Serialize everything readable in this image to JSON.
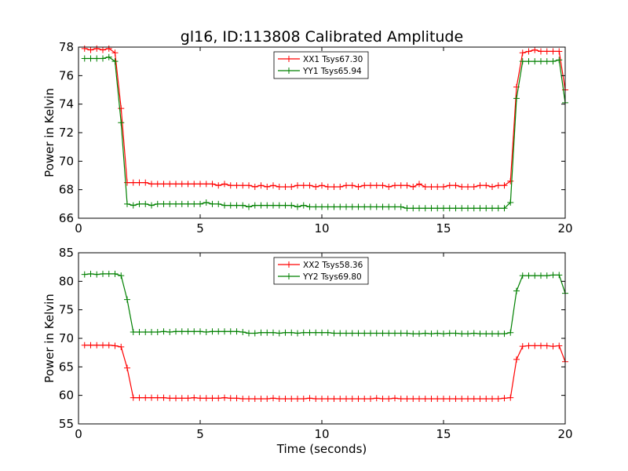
{
  "chart_data": [
    {
      "type": "line",
      "title": "gl16, ID:113808 Calibrated Amplitude",
      "xlabel": "",
      "ylabel": "Power in Kelvin",
      "xlim": [
        0,
        20
      ],
      "ylim": [
        66,
        78
      ],
      "xticks": [
        "0",
        "5",
        "10",
        "15",
        "20"
      ],
      "yticks": [
        "66",
        "68",
        "70",
        "72",
        "74",
        "76",
        "78"
      ],
      "grid": false,
      "legend_position": "top-center",
      "x": [
        0.25,
        0.5,
        0.75,
        1.0,
        1.25,
        1.5,
        1.75,
        2.0,
        2.25,
        2.5,
        2.75,
        3.0,
        3.25,
        3.5,
        3.75,
        4.0,
        4.25,
        4.5,
        4.75,
        5.0,
        5.25,
        5.5,
        5.75,
        6.0,
        6.25,
        6.5,
        6.75,
        7.0,
        7.25,
        7.5,
        7.75,
        8.0,
        8.25,
        8.5,
        8.75,
        9.0,
        9.25,
        9.5,
        9.75,
        10.0,
        10.25,
        10.5,
        10.75,
        11.0,
        11.25,
        11.5,
        11.75,
        12.0,
        12.25,
        12.5,
        12.75,
        13.0,
        13.25,
        13.5,
        13.75,
        14.0,
        14.25,
        14.5,
        14.75,
        15.0,
        15.25,
        15.5,
        15.75,
        16.0,
        16.25,
        16.5,
        16.75,
        17.0,
        17.25,
        17.5,
        17.75,
        18.0,
        18.25,
        18.5,
        18.75,
        19.0,
        19.25,
        19.5,
        19.75,
        20.0
      ],
      "series": [
        {
          "name": "XX1 Tsys67.30",
          "color": "#ff0000",
          "values": [
            77.9,
            77.8,
            77.9,
            77.8,
            77.9,
            77.6,
            73.7,
            68.5,
            68.5,
            68.5,
            68.5,
            68.4,
            68.4,
            68.4,
            68.4,
            68.4,
            68.4,
            68.4,
            68.4,
            68.4,
            68.4,
            68.4,
            68.3,
            68.4,
            68.3,
            68.3,
            68.3,
            68.3,
            68.2,
            68.3,
            68.2,
            68.3,
            68.2,
            68.2,
            68.2,
            68.3,
            68.3,
            68.3,
            68.2,
            68.3,
            68.2,
            68.2,
            68.2,
            68.3,
            68.3,
            68.2,
            68.3,
            68.3,
            68.3,
            68.3,
            68.2,
            68.3,
            68.3,
            68.3,
            68.2,
            68.4,
            68.2,
            68.2,
            68.2,
            68.2,
            68.3,
            68.3,
            68.2,
            68.2,
            68.2,
            68.3,
            68.3,
            68.2,
            68.3,
            68.3,
            68.6,
            75.2,
            77.6,
            77.7,
            77.8,
            77.7,
            77.7,
            77.7,
            77.7,
            75.0
          ]
        },
        {
          "name": "YY1 Tsys65.94",
          "color": "#008000",
          "values": [
            77.2,
            77.2,
            77.2,
            77.2,
            77.3,
            77.0,
            72.7,
            67.0,
            66.9,
            67.0,
            67.0,
            66.9,
            67.0,
            67.0,
            67.0,
            67.0,
            67.0,
            67.0,
            67.0,
            67.0,
            67.1,
            67.0,
            67.0,
            66.9,
            66.9,
            66.9,
            66.9,
            66.8,
            66.9,
            66.9,
            66.9,
            66.9,
            66.9,
            66.9,
            66.9,
            66.8,
            66.9,
            66.8,
            66.8,
            66.8,
            66.8,
            66.8,
            66.8,
            66.8,
            66.8,
            66.8,
            66.8,
            66.8,
            66.8,
            66.8,
            66.8,
            66.8,
            66.8,
            66.7,
            66.7,
            66.7,
            66.7,
            66.7,
            66.7,
            66.7,
            66.7,
            66.7,
            66.7,
            66.7,
            66.7,
            66.7,
            66.7,
            66.7,
            66.7,
            66.7,
            67.1,
            74.4,
            77.0,
            77.0,
            77.0,
            77.0,
            77.0,
            77.0,
            77.1,
            74.1
          ]
        }
      ]
    },
    {
      "type": "line",
      "title": "",
      "xlabel": "Time (seconds)",
      "ylabel": "Power in Kelvin",
      "xlim": [
        0,
        20
      ],
      "ylim": [
        55,
        85
      ],
      "xticks": [
        "0",
        "5",
        "10",
        "15",
        "20"
      ],
      "yticks": [
        "55",
        "60",
        "65",
        "70",
        "75",
        "80",
        "85"
      ],
      "grid": false,
      "legend_position": "top-center",
      "x": [
        0.25,
        0.5,
        0.75,
        1.0,
        1.25,
        1.5,
        1.75,
        2.0,
        2.25,
        2.5,
        2.75,
        3.0,
        3.25,
        3.5,
        3.75,
        4.0,
        4.25,
        4.5,
        4.75,
        5.0,
        5.25,
        5.5,
        5.75,
        6.0,
        6.25,
        6.5,
        6.75,
        7.0,
        7.25,
        7.5,
        7.75,
        8.0,
        8.25,
        8.5,
        8.75,
        9.0,
        9.25,
        9.5,
        9.75,
        10.0,
        10.25,
        10.5,
        10.75,
        11.0,
        11.25,
        11.5,
        11.75,
        12.0,
        12.25,
        12.5,
        12.75,
        13.0,
        13.25,
        13.5,
        13.75,
        14.0,
        14.25,
        14.5,
        14.75,
        15.0,
        15.25,
        15.5,
        15.75,
        16.0,
        16.25,
        16.5,
        16.75,
        17.0,
        17.25,
        17.5,
        17.75,
        18.0,
        18.25,
        18.5,
        18.75,
        19.0,
        19.25,
        19.5,
        19.75,
        20.0
      ],
      "series": [
        {
          "name": "XX2 Tsys58.36",
          "color": "#ff0000",
          "values": [
            68.8,
            68.8,
            68.8,
            68.8,
            68.8,
            68.7,
            68.5,
            64.8,
            59.6,
            59.6,
            59.6,
            59.6,
            59.6,
            59.6,
            59.5,
            59.5,
            59.5,
            59.5,
            59.6,
            59.5,
            59.5,
            59.5,
            59.5,
            59.6,
            59.5,
            59.5,
            59.4,
            59.4,
            59.4,
            59.4,
            59.4,
            59.5,
            59.4,
            59.4,
            59.4,
            59.4,
            59.4,
            59.5,
            59.4,
            59.4,
            59.4,
            59.4,
            59.4,
            59.4,
            59.4,
            59.4,
            59.4,
            59.4,
            59.5,
            59.4,
            59.4,
            59.5,
            59.4,
            59.4,
            59.4,
            59.4,
            59.4,
            59.4,
            59.4,
            59.4,
            59.4,
            59.4,
            59.4,
            59.4,
            59.4,
            59.4,
            59.4,
            59.4,
            59.4,
            59.5,
            59.6,
            66.3,
            68.6,
            68.7,
            68.7,
            68.7,
            68.7,
            68.6,
            68.7,
            65.9
          ]
        },
        {
          "name": "YY2 Tsys69.80",
          "color": "#008000",
          "values": [
            81.2,
            81.3,
            81.2,
            81.3,
            81.3,
            81.3,
            81.0,
            76.8,
            71.1,
            71.1,
            71.1,
            71.1,
            71.1,
            71.2,
            71.1,
            71.2,
            71.2,
            71.2,
            71.2,
            71.2,
            71.1,
            71.2,
            71.2,
            71.2,
            71.2,
            71.2,
            71.1,
            70.9,
            70.9,
            71.0,
            71.0,
            71.0,
            70.9,
            71.0,
            71.0,
            70.9,
            71.0,
            71.0,
            71.0,
            71.0,
            71.0,
            70.9,
            70.9,
            70.9,
            70.9,
            70.9,
            70.9,
            70.9,
            70.9,
            70.9,
            70.9,
            70.9,
            70.9,
            70.9,
            70.8,
            70.8,
            70.9,
            70.8,
            70.9,
            70.8,
            70.9,
            70.9,
            70.8,
            70.8,
            70.9,
            70.8,
            70.8,
            70.8,
            70.8,
            70.8,
            71.0,
            78.3,
            81.0,
            81.0,
            81.0,
            81.0,
            81.0,
            81.1,
            81.1,
            77.9
          ]
        }
      ]
    }
  ]
}
